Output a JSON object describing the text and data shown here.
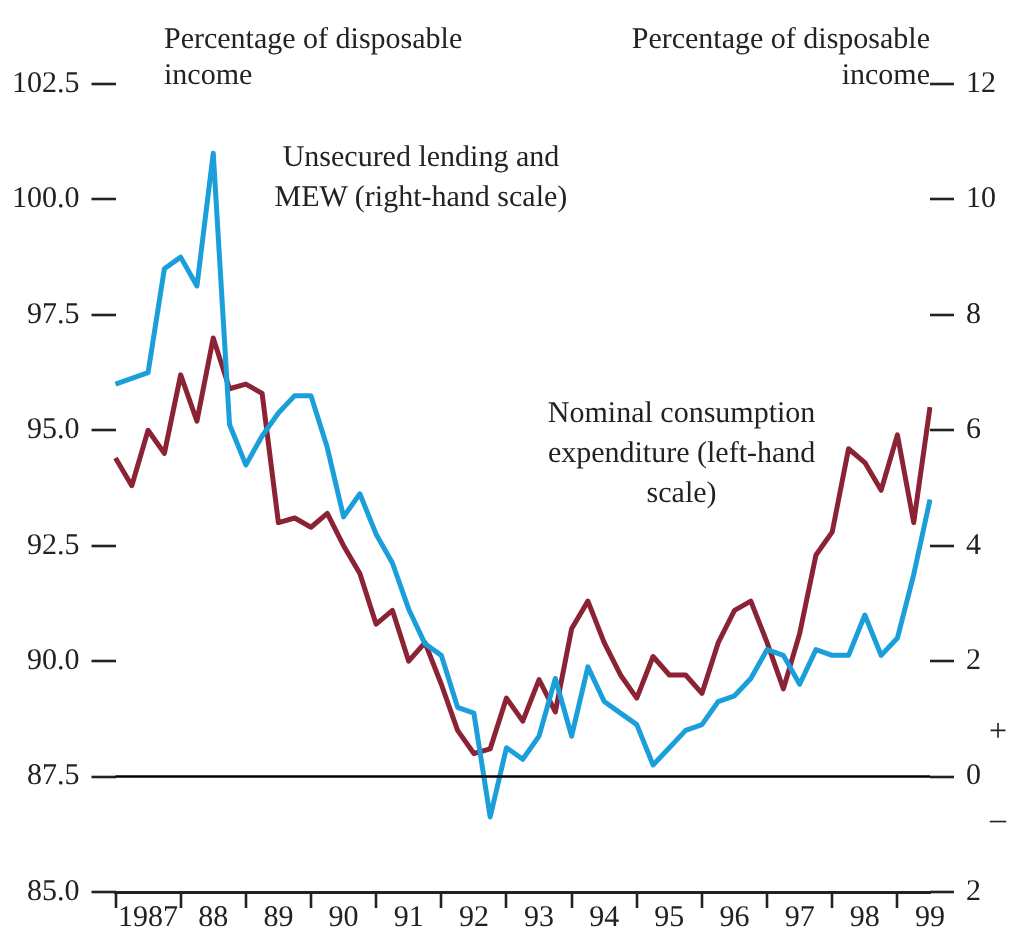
{
  "chart_data": {
    "type": "line",
    "ylabel": "Percentage of disposable income",
    "y2label": "Percentage of disposable income",
    "categories": [
      null,
      null,
      "1987",
      null,
      null,
      null,
      "88",
      null,
      null,
      null,
      "89",
      null,
      null,
      null,
      "90",
      null,
      null,
      null,
      "91",
      null,
      null,
      null,
      "92",
      null,
      null,
      null,
      "93",
      null,
      null,
      null,
      "94",
      null,
      null,
      null,
      "95",
      null,
      null,
      null,
      "96",
      null,
      null,
      null,
      "97",
      null,
      null,
      null,
      "98",
      null,
      null,
      null,
      "99"
    ],
    "ylim": [
      85,
      102.5
    ],
    "yticks": [
      {
        "value": 85,
        "label": "85.0"
      },
      {
        "value": 87.5,
        "label": "87.5"
      },
      {
        "value": 90,
        "label": "90.0"
      },
      {
        "value": 92.5,
        "label": "92.5"
      },
      {
        "value": 95,
        "label": "95.0"
      },
      {
        "value": 97.5,
        "label": "97.5"
      },
      {
        "value": 100,
        "label": "100.0"
      },
      {
        "value": 102.5,
        "label": "102.5"
      }
    ],
    "y2lim": [
      -2,
      12
    ],
    "y2ticks": [
      {
        "value": -2,
        "label": "2"
      },
      0,
      2,
      4,
      6,
      8,
      10,
      12
    ],
    "grid": false,
    "legend": false,
    "marker": "none",
    "line_style": "solid",
    "ref_lines": [
      {
        "axis": "y",
        "value": 87.5,
        "color": "#000000"
      }
    ],
    "annotations": [
      "+",
      "–"
    ],
    "series": [
      {
        "name": "Unsecured lending and MEW (right-hand scale)",
        "color": "#1a9fdb",
        "axis": "y2",
        "values": [
          6.8,
          6.9,
          7.0,
          8.8,
          9.0,
          8.5,
          10.8,
          6.1,
          5.4,
          5.9,
          6.3,
          6.6,
          6.6,
          5.7,
          4.5,
          4.9,
          4.2,
          3.7,
          2.9,
          2.3,
          2.1,
          1.2,
          1.1,
          -0.7,
          0.5,
          0.3,
          0.7,
          1.7,
          0.7,
          1.9,
          1.3,
          1.1,
          0.9,
          0.2,
          0.5,
          0.8,
          0.9,
          1.3,
          1.4,
          1.7,
          2.2,
          2.1,
          1.6,
          2.2,
          2.1,
          2.1,
          2.8,
          2.1,
          2.4,
          3.5,
          4.8
        ]
      },
      {
        "name": "Nominal consumption expenditure (left-hand scale)",
        "color": "#8b2335",
        "axis": "y",
        "values": [
          94.4,
          93.8,
          95.0,
          94.5,
          96.2,
          95.2,
          97.0,
          95.9,
          96.0,
          95.8,
          93.0,
          93.1,
          92.9,
          93.2,
          92.5,
          91.9,
          90.8,
          91.1,
          90.0,
          90.4,
          89.5,
          88.5,
          88.0,
          88.1,
          89.2,
          88.7,
          89.6,
          88.9,
          90.7,
          91.3,
          90.4,
          89.7,
          89.2,
          90.1,
          89.7,
          89.7,
          89.3,
          90.4,
          91.1,
          91.3,
          90.4,
          89.4,
          90.6,
          92.3,
          92.8,
          94.6,
          94.3,
          93.7,
          94.9,
          93.0,
          95.5
        ]
      }
    ]
  }
}
